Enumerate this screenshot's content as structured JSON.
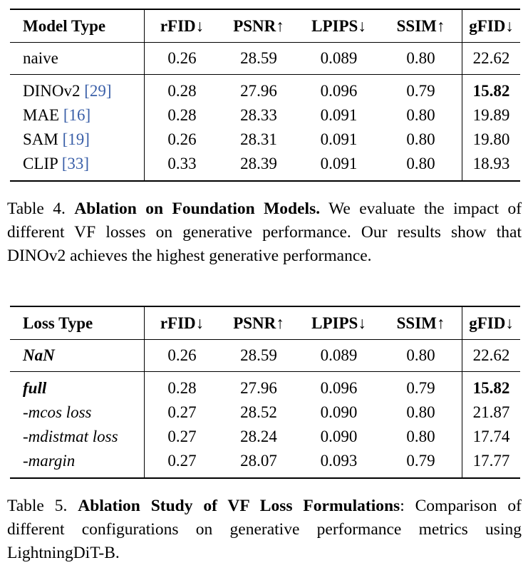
{
  "table4": {
    "headers": [
      "Model Type",
      "rFID↓",
      "PSNR↑",
      "LPIPS↓",
      "SSIM↑",
      "gFID↓"
    ],
    "baseline": {
      "name": "naive",
      "values": [
        "0.26",
        "28.59",
        "0.089",
        "0.80",
        "22.62"
      ]
    },
    "rows": [
      {
        "name": "DINOv2",
        "cite": "[29]",
        "values": [
          "0.28",
          "27.96",
          "0.096",
          "0.79",
          "15.82"
        ]
      },
      {
        "name": "MAE",
        "cite": "[16]",
        "values": [
          "0.28",
          "28.33",
          "0.091",
          "0.80",
          "19.89"
        ]
      },
      {
        "name": "SAM",
        "cite": "[19]",
        "values": [
          "0.26",
          "28.31",
          "0.091",
          "0.80",
          "19.80"
        ]
      },
      {
        "name": "CLIP",
        "cite": "[33]",
        "values": [
          "0.33",
          "28.39",
          "0.091",
          "0.80",
          "18.93"
        ]
      }
    ],
    "caption_label": "Table 4.",
    "caption_title": "Ablation on Foundation Models.",
    "caption_text": "We evaluate the impact of different VF losses on generative performance. Our results show that DINOv2 achieves the highest generative performance."
  },
  "table5": {
    "headers": [
      "Loss Type",
      "rFID↓",
      "PSNR↑",
      "LPIPS↓",
      "SSIM↑",
      "gFID↓"
    ],
    "baseline": {
      "name": "NaN",
      "values": [
        "0.26",
        "28.59",
        "0.089",
        "0.80",
        "22.62"
      ]
    },
    "rows": [
      {
        "name": "full",
        "values": [
          "0.28",
          "27.96",
          "0.096",
          "0.79",
          "15.82"
        ]
      },
      {
        "name": "-mcos loss",
        "values": [
          "0.27",
          "28.52",
          "0.090",
          "0.80",
          "21.87"
        ]
      },
      {
        "name": "-mdistmat loss",
        "values": [
          "0.27",
          "28.24",
          "0.090",
          "0.80",
          "17.74"
        ]
      },
      {
        "name": "-margin",
        "values": [
          "0.27",
          "28.07",
          "0.093",
          "0.79",
          "17.77"
        ]
      }
    ],
    "caption_label": "Table 5.",
    "caption_title": "Ablation Study of VF Loss Formulations",
    "caption_text": ": Comparison of different configurations on generative performance metrics using LightningDiT-B."
  }
}
